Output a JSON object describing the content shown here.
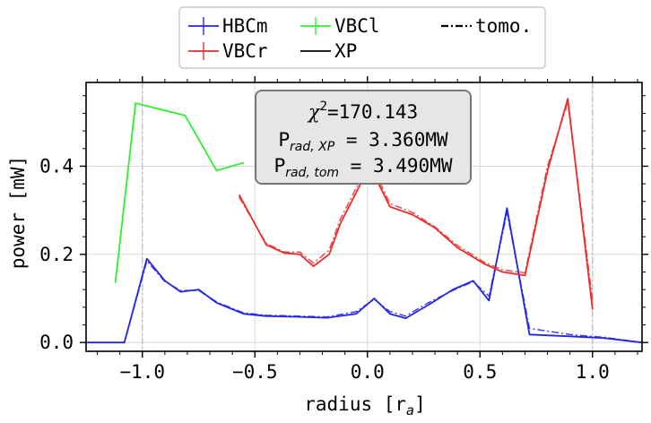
{
  "chart_data": {
    "type": "line",
    "xlabel": "radius [r",
    "xlabel_sub": "a",
    "xlabel_close": "]",
    "ylabel": "power [mW]",
    "xlim": [
      -1.25,
      1.22
    ],
    "ylim": [
      -0.02,
      0.59
    ],
    "x_ticks": [
      -1.0,
      -0.5,
      0.0,
      0.5,
      1.0
    ],
    "x_tick_labels": [
      "−1.0",
      "−0.5",
      "0.0",
      "0.5",
      "1.0"
    ],
    "y_ticks": [
      0.0,
      0.2,
      0.4
    ],
    "y_tick_labels": [
      "0.0",
      "0.2",
      "0.4"
    ],
    "grid": true,
    "vlines": [
      -1.0,
      1.0
    ],
    "legend_position": "top-center",
    "annotation": {
      "chi_text": "χ",
      "chi_sup": "2",
      "chi_value": "=170.143",
      "xp_prefix": "P",
      "xp_sub": "rad, XP",
      "xp_value": " = 3.360MW",
      "tom_prefix": "P",
      "tom_sub": "rad, tom",
      "tom_value": " = 3.490MW"
    },
    "series": [
      {
        "name": "HBCm",
        "color": "#2424e8",
        "style": "solid",
        "x": [
          -1.25,
          -1.08,
          -0.98,
          -0.9,
          -0.83,
          -0.75,
          -0.67,
          -0.55,
          -0.45,
          -0.3,
          -0.18,
          -0.05,
          0.03,
          0.1,
          0.17,
          0.27,
          0.38,
          0.47,
          0.54,
          0.62,
          0.72,
          0.9,
          1.05,
          1.22
        ],
        "y": [
          0.0,
          0.0,
          0.19,
          0.14,
          0.115,
          0.12,
          0.09,
          0.065,
          0.06,
          0.058,
          0.056,
          0.065,
          0.1,
          0.065,
          0.055,
          0.085,
          0.12,
          0.14,
          0.095,
          0.305,
          0.018,
          0.014,
          0.01,
          0.0
        ]
      },
      {
        "name": "HBCm tomo.",
        "color": "#2424e8",
        "style": "dashdot",
        "x": [
          -1.25,
          -1.08,
          -0.98,
          -0.9,
          -0.83,
          -0.75,
          -0.67,
          -0.55,
          -0.45,
          -0.3,
          -0.18,
          -0.05,
          0.03,
          0.1,
          0.17,
          0.27,
          0.38,
          0.47,
          0.54,
          0.62,
          0.72,
          0.9,
          1.05,
          1.22
        ],
        "y": [
          0.0,
          0.0,
          0.185,
          0.138,
          0.118,
          0.118,
          0.092,
          0.067,
          0.062,
          0.06,
          0.058,
          0.07,
          0.098,
          0.07,
          0.06,
          0.09,
          0.118,
          0.138,
          0.105,
          0.295,
          0.032,
          0.018,
          0.012,
          0.0
        ]
      },
      {
        "name": "VBCr",
        "color": "#ee2b2b",
        "style": "solid",
        "x": [
          -0.57,
          -0.45,
          -0.37,
          -0.3,
          -0.24,
          -0.17,
          -0.12,
          -0.03,
          0.04,
          0.1,
          0.2,
          0.3,
          0.4,
          0.52,
          0.6,
          0.7,
          0.8,
          0.89,
          1.0
        ],
        "y": [
          0.335,
          0.222,
          0.203,
          0.2,
          0.173,
          0.2,
          0.27,
          0.36,
          0.37,
          0.308,
          0.29,
          0.26,
          0.215,
          0.178,
          0.16,
          0.152,
          0.39,
          0.553,
          0.075
        ]
      },
      {
        "name": "VBCr tomo.",
        "color": "#ee2b2b",
        "style": "dashdot",
        "x": [
          -0.57,
          -0.45,
          -0.37,
          -0.3,
          -0.24,
          -0.17,
          -0.12,
          -0.03,
          0.04,
          0.1,
          0.2,
          0.3,
          0.4,
          0.52,
          0.6,
          0.7,
          0.8,
          0.89,
          1.0
        ],
        "y": [
          0.33,
          0.225,
          0.205,
          0.205,
          0.18,
          0.21,
          0.28,
          0.37,
          0.38,
          0.315,
          0.295,
          0.262,
          0.22,
          0.182,
          0.165,
          0.158,
          0.4,
          0.545,
          0.095
        ]
      },
      {
        "name": "VBCl",
        "color": "#2ef02e",
        "style": "solid",
        "x": [
          -1.12,
          -1.03,
          -0.81,
          -0.67,
          -0.55
        ],
        "y": [
          0.135,
          0.543,
          0.515,
          0.39,
          0.408
        ]
      }
    ],
    "legend": [
      {
        "label": "HBCm",
        "color": "#2424e8",
        "style": "errbar"
      },
      {
        "label": "VBCl",
        "color": "#2ef02e",
        "style": "errbar"
      },
      {
        "label": "tomo.",
        "color": "#000000",
        "style": "dashdot"
      },
      {
        "label": "VBCr",
        "color": "#ee2b2b",
        "style": "errbar"
      },
      {
        "label": "XP",
        "color": "#000000",
        "style": "solid"
      }
    ]
  }
}
